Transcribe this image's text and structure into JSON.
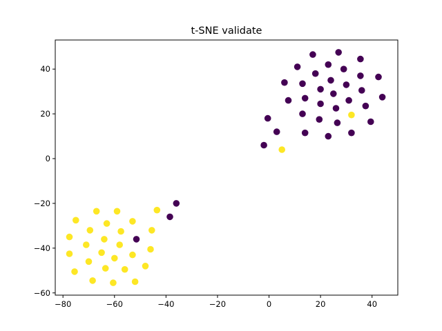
{
  "chart_data": {
    "type": "scatter",
    "title": "t-SNE validate",
    "xlabel": "",
    "ylabel": "",
    "xlim": [
      -83,
      50
    ],
    "ylim": [
      -61,
      53
    ],
    "xticks": [
      -80,
      -60,
      -40,
      -20,
      0,
      20,
      40
    ],
    "yticks": [
      -60,
      -40,
      -20,
      0,
      20,
      40
    ],
    "xtick_labels": [
      "−80",
      "−60",
      "−40",
      "−20",
      "0",
      "20",
      "40"
    ],
    "ytick_labels": [
      "−60",
      "−40",
      "−20",
      "0",
      "20",
      "40"
    ],
    "grid": false,
    "legend": "none",
    "series": [
      {
        "color": "#440154",
        "points": [
          [
            27,
            47.5
          ],
          [
            17,
            46.5
          ],
          [
            35.5,
            44.5
          ],
          [
            23,
            42
          ],
          [
            11,
            41
          ],
          [
            29,
            40
          ],
          [
            18,
            38
          ],
          [
            35.5,
            37
          ],
          [
            42.5,
            36.5
          ],
          [
            24,
            35
          ],
          [
            6,
            34
          ],
          [
            13,
            33.5
          ],
          [
            30,
            33
          ],
          [
            20,
            31
          ],
          [
            36,
            30.5
          ],
          [
            25,
            29
          ],
          [
            44,
            27.5
          ],
          [
            14,
            27
          ],
          [
            7.5,
            26
          ],
          [
            31,
            26
          ],
          [
            20,
            24.5
          ],
          [
            37.5,
            23.5
          ],
          [
            26,
            22.5
          ],
          [
            13,
            20
          ],
          [
            -0.5,
            18
          ],
          [
            19.5,
            17.5
          ],
          [
            39.5,
            16.5
          ],
          [
            26.5,
            16
          ],
          [
            3,
            12
          ],
          [
            14,
            11.5
          ],
          [
            32,
            11.5
          ],
          [
            23,
            10
          ],
          [
            -2,
            6
          ],
          [
            -36,
            -20
          ],
          [
            -38.5,
            -26
          ],
          [
            -51.5,
            -36
          ]
        ]
      },
      {
        "color": "#fde725",
        "points": [
          [
            32,
            19.5
          ],
          [
            5,
            4
          ],
          [
            -43.5,
            -23
          ],
          [
            -67,
            -23.5
          ],
          [
            -59,
            -23.5
          ],
          [
            -75,
            -27.5
          ],
          [
            -53,
            -28
          ],
          [
            -63,
            -29
          ],
          [
            -69.5,
            -32
          ],
          [
            -57.5,
            -32.5
          ],
          [
            -45.5,
            -32
          ],
          [
            -77.5,
            -35
          ],
          [
            -64,
            -36
          ],
          [
            -58,
            -38.5
          ],
          [
            -71,
            -38.5
          ],
          [
            -46,
            -40.5
          ],
          [
            -65,
            -42
          ],
          [
            -77.5,
            -42.5
          ],
          [
            -53,
            -43
          ],
          [
            -60,
            -44.5
          ],
          [
            -70,
            -46
          ],
          [
            -48,
            -48
          ],
          [
            -63.5,
            -49
          ],
          [
            -56,
            -49.5
          ],
          [
            -75.5,
            -50.5
          ],
          [
            -68.5,
            -54.5
          ],
          [
            -52,
            -55
          ],
          [
            -60.5,
            -55.5
          ]
        ]
      }
    ]
  }
}
